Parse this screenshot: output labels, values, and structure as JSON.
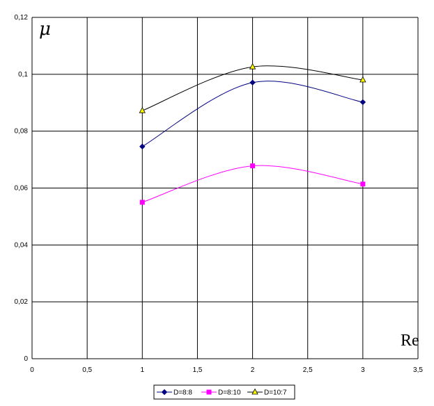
{
  "chart_data": {
    "type": "line",
    "title": "",
    "xlabel": "Re",
    "ylabel": "μ",
    "xlim": [
      0,
      3.5
    ],
    "ylim": [
      0,
      0.12
    ],
    "xticks": [
      0,
      0.5,
      1,
      1.5,
      2,
      2.5,
      3,
      3.5
    ],
    "yticks": [
      0,
      0.02,
      0.04,
      0.06,
      0.08,
      0.1,
      0.12
    ],
    "xtick_labels": [
      "0",
      "0,5",
      "1",
      "1,5",
      "2",
      "2,5",
      "3",
      "3,5"
    ],
    "ytick_labels": [
      "0",
      "0,02",
      "0,04",
      "0,06",
      "0,08",
      "0,1",
      "0,12"
    ],
    "grid": true,
    "smooth": true,
    "legend_position": "bottom",
    "series": [
      {
        "name": "D=8:8",
        "color": "#000080",
        "marker": "diamond",
        "x": [
          1,
          2,
          3
        ],
        "y": [
          0.0746,
          0.0971,
          0.0902
        ]
      },
      {
        "name": "D=8:10",
        "color": "#ff00ff",
        "marker": "square",
        "x": [
          1,
          2,
          3
        ],
        "y": [
          0.055,
          0.0678,
          0.0614
        ]
      },
      {
        "name": "D=10:7",
        "color": "#000000",
        "marker": "triangle",
        "marker_fill": "#ffff00",
        "x": [
          1,
          2,
          3
        ],
        "y": [
          0.0872,
          0.1026,
          0.098
        ]
      }
    ]
  }
}
